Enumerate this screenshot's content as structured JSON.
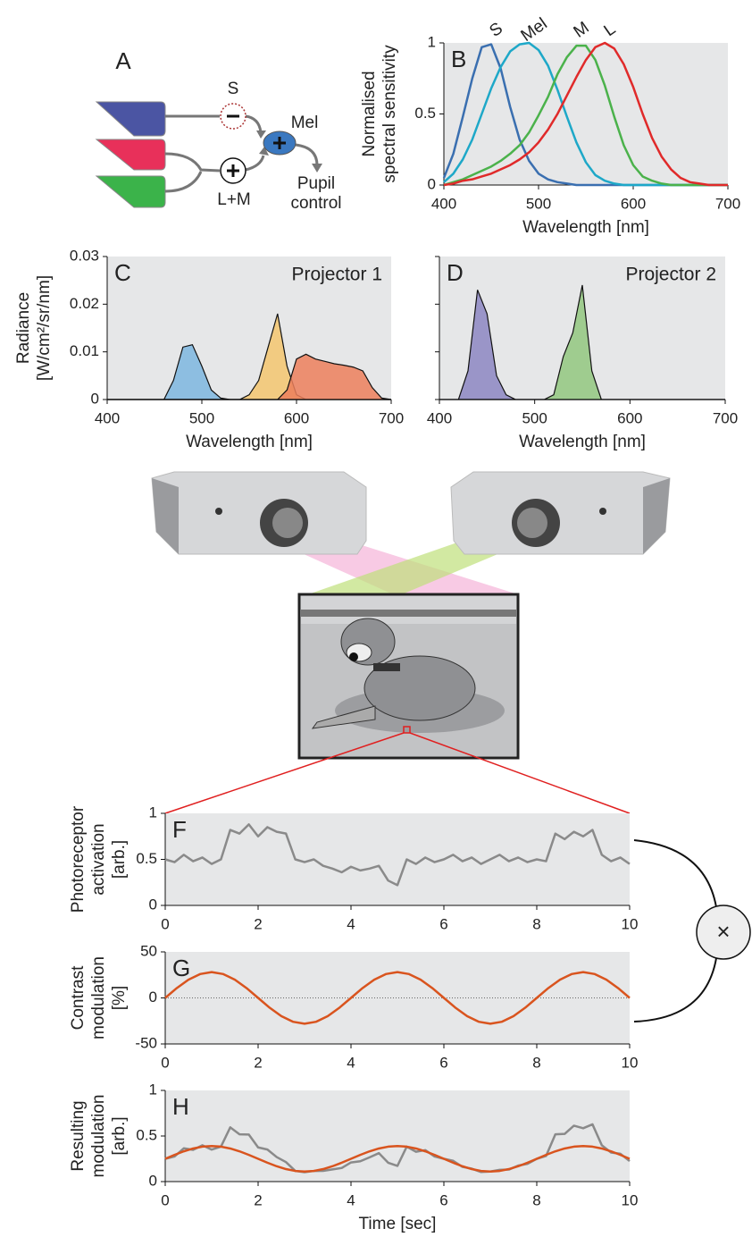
{
  "diagram_a": {
    "label": "A",
    "s": "S",
    "mel": "Mel",
    "lm": "L+M",
    "output": [
      "Pupil",
      "control"
    ]
  },
  "combine": {
    "symbol": "×"
  },
  "chart_data": [
    {
      "type": "line",
      "panel": "B",
      "xlabel": "Wavelength [nm]",
      "ylabel": [
        "Normalised",
        "spectral sensitivity"
      ],
      "series_labels": true,
      "x": [
        400,
        410,
        420,
        430,
        440,
        450,
        460,
        470,
        480,
        490,
        500,
        510,
        520,
        530,
        540,
        550,
        560,
        570,
        580,
        590,
        600,
        610,
        620,
        630,
        640,
        650,
        660,
        670,
        680,
        690,
        700
      ],
      "series": [
        {
          "name": "S",
          "color": "#3a6fb0",
          "values": [
            0.05,
            0.22,
            0.48,
            0.75,
            0.97,
            0.99,
            0.82,
            0.55,
            0.32,
            0.17,
            0.08,
            0.04,
            0.02,
            0.01,
            0,
            0,
            0,
            0,
            0,
            0,
            0,
            0,
            0,
            0,
            0,
            0,
            0,
            0,
            0,
            0,
            0
          ]
        },
        {
          "name": "Mel",
          "color": "#1ea8c8",
          "values": [
            0.02,
            0.08,
            0.18,
            0.32,
            0.5,
            0.68,
            0.83,
            0.94,
            0.99,
            1,
            0.95,
            0.84,
            0.67,
            0.48,
            0.3,
            0.16,
            0.07,
            0.03,
            0.01,
            0,
            0,
            0,
            0,
            0,
            0,
            0,
            0,
            0,
            0,
            0,
            0
          ]
        },
        {
          "name": "M",
          "color": "#4bb24b",
          "values": [
            0,
            0.02,
            0.04,
            0.07,
            0.1,
            0.13,
            0.17,
            0.22,
            0.28,
            0.37,
            0.49,
            0.62,
            0.78,
            0.9,
            0.98,
            0.98,
            0.88,
            0.7,
            0.48,
            0.28,
            0.14,
            0.06,
            0.03,
            0.01,
            0,
            0,
            0,
            0,
            0,
            0,
            0
          ]
        },
        {
          "name": "L",
          "color": "#e02a2a",
          "values": [
            0,
            0.01,
            0.03,
            0.04,
            0.06,
            0.08,
            0.11,
            0.14,
            0.18,
            0.23,
            0.3,
            0.39,
            0.5,
            0.63,
            0.76,
            0.88,
            0.97,
            1,
            0.96,
            0.85,
            0.69,
            0.5,
            0.33,
            0.2,
            0.11,
            0.05,
            0.02,
            0.01,
            0,
            0,
            0
          ]
        }
      ],
      "xlim": [
        400,
        700
      ],
      "ylim": [
        0,
        1
      ],
      "xticks": [
        400,
        500,
        600,
        700
      ],
      "yticks": [
        0,
        0.5,
        1
      ]
    },
    {
      "type": "area",
      "panel": "C",
      "title": "Projector 1",
      "xlabel": "Wavelength [nm]",
      "ylabel": [
        "Radiance",
        "[W/cm²/sr/nm]"
      ],
      "x": [
        400,
        410,
        420,
        430,
        440,
        450,
        460,
        470,
        480,
        490,
        500,
        510,
        520,
        530,
        540,
        550,
        560,
        570,
        580,
        590,
        600,
        610,
        620,
        630,
        640,
        650,
        660,
        670,
        680,
        690,
        700
      ],
      "series": [
        {
          "color": "#7db6df",
          "values": [
            0,
            0,
            0,
            0,
            0,
            0,
            0,
            0.004,
            0.011,
            0.0115,
            0.007,
            0.002,
            0.0003,
            0,
            0,
            0,
            0,
            0,
            0,
            0,
            0,
            0,
            0,
            0,
            0,
            0,
            0,
            0,
            0,
            0,
            0
          ]
        },
        {
          "color": "#f3c56f",
          "values": [
            0,
            0,
            0,
            0,
            0,
            0,
            0,
            0,
            0,
            0,
            0,
            0,
            0,
            0,
            0,
            0.001,
            0.004,
            0.011,
            0.018,
            0.007,
            0.001,
            0,
            0,
            0,
            0,
            0,
            0,
            0,
            0,
            0,
            0
          ]
        },
        {
          "color": "#ec7f5c",
          "values": [
            0,
            0,
            0,
            0,
            0,
            0,
            0,
            0,
            0,
            0,
            0,
            0,
            0,
            0,
            0,
            0,
            0,
            0,
            0,
            0.002,
            0.0085,
            0.0095,
            0.0085,
            0.008,
            0.0075,
            0.0072,
            0.0068,
            0.006,
            0.0025,
            0.0003,
            0
          ]
        }
      ],
      "xlim": [
        400,
        700
      ],
      "ylim": [
        0,
        0.03
      ],
      "xticks": [
        400,
        500,
        600,
        700
      ],
      "yticks": [
        0,
        0.01,
        0.02,
        0.03
      ]
    },
    {
      "type": "area",
      "panel": "D",
      "title": "Projector 2",
      "xlabel": "Wavelength [nm]",
      "ytick_labels": false,
      "x": [
        400,
        410,
        420,
        430,
        440,
        450,
        460,
        470,
        480,
        490,
        500,
        510,
        520,
        530,
        540,
        550,
        560,
        570,
        580,
        590,
        600,
        610,
        620,
        630,
        640,
        650,
        660,
        670,
        680,
        690,
        700
      ],
      "series": [
        {
          "color": "#8c86c2",
          "values": [
            0,
            0,
            0,
            0.006,
            0.023,
            0.018,
            0.005,
            0.001,
            0,
            0,
            0,
            0,
            0,
            0,
            0,
            0,
            0,
            0,
            0,
            0,
            0,
            0,
            0,
            0,
            0,
            0,
            0,
            0,
            0,
            0,
            0
          ]
        },
        {
          "color": "#92c77f",
          "values": [
            0,
            0,
            0,
            0,
            0,
            0,
            0,
            0,
            0,
            0,
            0,
            0,
            0.001,
            0.009,
            0.014,
            0.024,
            0.006,
            0,
            0,
            0,
            0,
            0,
            0,
            0,
            0,
            0,
            0,
            0,
            0,
            0,
            0
          ]
        }
      ],
      "xlim": [
        400,
        700
      ],
      "ylim": [
        0,
        0.03
      ],
      "xticks": [
        400,
        500,
        600,
        700
      ],
      "yticks": [
        0,
        0.01,
        0.02,
        0.03
      ]
    },
    {
      "type": "line",
      "panel": "F",
      "ylabel": [
        "Photoreceptor",
        "activation",
        "[arb.]"
      ],
      "x": [
        0,
        0.2,
        0.4,
        0.6,
        0.8,
        1,
        1.2,
        1.4,
        1.6,
        1.8,
        2,
        2.2,
        2.4,
        2.6,
        2.8,
        3,
        3.2,
        3.4,
        3.6,
        3.8,
        4,
        4.2,
        4.4,
        4.6,
        4.8,
        5,
        5.2,
        5.4,
        5.6,
        5.8,
        6,
        6.2,
        6.4,
        6.6,
        6.8,
        7,
        7.2,
        7.4,
        7.6,
        7.8,
        8,
        8.2,
        8.4,
        8.6,
        8.8,
        9,
        9.2,
        9.4,
        9.6,
        9.8,
        10
      ],
      "series": [
        {
          "color": "#8a8a8a",
          "values": [
            0.5,
            0.47,
            0.55,
            0.48,
            0.52,
            0.45,
            0.5,
            0.82,
            0.78,
            0.88,
            0.75,
            0.85,
            0.8,
            0.78,
            0.5,
            0.47,
            0.5,
            0.43,
            0.4,
            0.36,
            0.42,
            0.38,
            0.4,
            0.43,
            0.27,
            0.22,
            0.5,
            0.45,
            0.52,
            0.47,
            0.5,
            0.55,
            0.48,
            0.52,
            0.45,
            0.5,
            0.55,
            0.48,
            0.52,
            0.47,
            0.5,
            0.48,
            0.78,
            0.72,
            0.8,
            0.75,
            0.82,
            0.55,
            0.48,
            0.52,
            0.45
          ]
        }
      ],
      "xlim": [
        0,
        10
      ],
      "ylim": [
        0,
        1
      ],
      "xticks": [
        0,
        2,
        4,
        6,
        8,
        10
      ],
      "yticks": [
        0,
        0.5,
        1
      ]
    },
    {
      "type": "line",
      "panel": "G",
      "ylabel": [
        "Contrast",
        "modulation",
        "[%]"
      ],
      "zero_line": true,
      "x": [
        0,
        0.25,
        0.5,
        0.75,
        1,
        1.25,
        1.5,
        1.75,
        2,
        2.25,
        2.5,
        2.75,
        3,
        3.25,
        3.5,
        3.75,
        4,
        4.25,
        4.5,
        4.75,
        5,
        5.25,
        5.5,
        5.75,
        6,
        6.25,
        6.5,
        6.75,
        7,
        7.25,
        7.5,
        7.75,
        8,
        8.25,
        8.5,
        8.75,
        9,
        9.25,
        9.5,
        9.75,
        10
      ],
      "series": [
        {
          "color": "#d9541e",
          "values": [
            0,
            10.7,
            19.8,
            25.9,
            28,
            25.9,
            19.8,
            10.7,
            0,
            -10.7,
            -19.8,
            -25.9,
            -28,
            -25.9,
            -19.8,
            -10.7,
            0,
            10.7,
            19.8,
            25.9,
            28,
            25.9,
            19.8,
            10.7,
            0,
            -10.7,
            -19.8,
            -25.9,
            -28,
            -25.9,
            -19.8,
            -10.7,
            0,
            10.7,
            19.8,
            25.9,
            28,
            25.9,
            19.8,
            10.7,
            0
          ]
        }
      ],
      "xlim": [
        0,
        10
      ],
      "ylim": [
        -50,
        50
      ],
      "xticks": [
        0,
        2,
        4,
        6,
        8,
        10
      ],
      "yticks": [
        -50,
        0,
        50
      ]
    },
    {
      "type": "line",
      "panel": "H",
      "xlabel": "Time [sec]",
      "ylabel": [
        "Resulting",
        "modulation",
        "[arb.]"
      ],
      "x": [
        0,
        0.2,
        0.4,
        0.6,
        0.8,
        1,
        1.2,
        1.4,
        1.6,
        1.8,
        2,
        2.2,
        2.4,
        2.6,
        2.8,
        3,
        3.2,
        3.4,
        3.6,
        3.8,
        4,
        4.2,
        4.4,
        4.6,
        4.8,
        5,
        5.2,
        5.4,
        5.6,
        5.8,
        6,
        6.2,
        6.4,
        6.6,
        6.8,
        7,
        7.2,
        7.4,
        7.6,
        7.8,
        8,
        8.2,
        8.4,
        8.6,
        8.8,
        9,
        9.2,
        9.4,
        9.6,
        9.8,
        10
      ],
      "series": [
        {
          "color": "#8a8a8a",
          "values": [
            0.25,
            0.275,
            0.365,
            0.348,
            0.398,
            0.351,
            0.383,
            0.595,
            0.518,
            0.516,
            0.375,
            0.352,
            0.269,
            0.214,
            0.117,
            0.103,
            0.117,
            0.118,
            0.134,
            0.149,
            0.21,
            0.223,
            0.266,
            0.312,
            0.207,
            0.172,
            0.383,
            0.327,
            0.345,
            0.275,
            0.25,
            0.228,
            0.161,
            0.142,
            0.105,
            0.11,
            0.129,
            0.132,
            0.175,
            0.195,
            0.25,
            0.281,
            0.518,
            0.523,
            0.613,
            0.585,
            0.628,
            0.399,
            0.319,
            0.305,
            0.225
          ]
        },
        {
          "color": "#d9541e",
          "values": [
            0.25,
            0.293,
            0.332,
            0.363,
            0.383,
            0.39,
            0.383,
            0.363,
            0.332,
            0.293,
            0.25,
            0.207,
            0.168,
            0.137,
            0.117,
            0.11,
            0.117,
            0.137,
            0.168,
            0.207,
            0.25,
            0.293,
            0.332,
            0.363,
            0.383,
            0.39,
            0.383,
            0.363,
            0.332,
            0.293,
            0.25,
            0.207,
            0.168,
            0.137,
            0.117,
            0.11,
            0.117,
            0.137,
            0.168,
            0.207,
            0.25,
            0.293,
            0.332,
            0.363,
            0.383,
            0.39,
            0.383,
            0.363,
            0.332,
            0.293,
            0.25
          ]
        }
      ],
      "xlim": [
        0,
        10
      ],
      "ylim": [
        0,
        1
      ],
      "xticks": [
        0,
        2,
        4,
        6,
        8,
        10
      ],
      "yticks": [
        0,
        0.5,
        1
      ]
    }
  ]
}
